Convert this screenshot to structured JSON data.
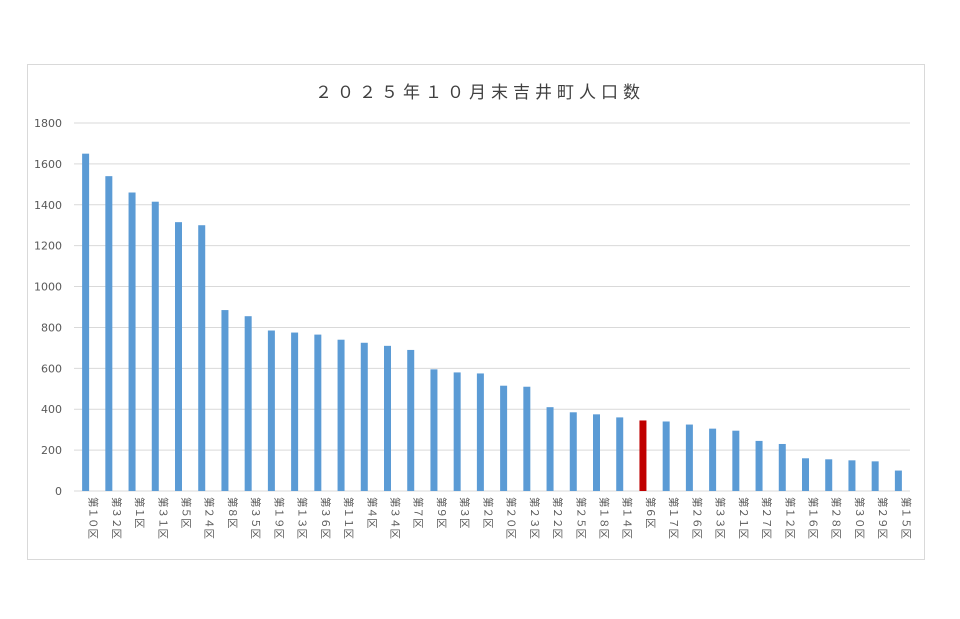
{
  "chart_data": {
    "type": "bar",
    "title": "２０２５年１０月末吉井町人口数",
    "xlabel": "",
    "ylabel": "",
    "ylim": [
      0,
      1800
    ],
    "yticks": [
      0,
      200,
      400,
      600,
      800,
      1000,
      1200,
      1400,
      1600,
      1800
    ],
    "grid": true,
    "legend": "none",
    "colors": {
      "bar": "#5b9bd5",
      "highlight": "#c00000",
      "grid": "#d9d9d9",
      "text": "#595959"
    },
    "highlight_category": "第６区",
    "categories": [
      "第１０区",
      "第３２区",
      "第１区",
      "第３１区",
      "第５区",
      "第２４区",
      "第８区",
      "第３５区",
      "第１９区",
      "第１３区",
      "第３６区",
      "第１１区",
      "第４区",
      "第３４区",
      "第７区",
      "第９区",
      "第３区",
      "第２区",
      "第２０区",
      "第２３区",
      "第２２区",
      "第２５区",
      "第１８区",
      "第１４区",
      "第６区",
      "第１７区",
      "第２６区",
      "第３３区",
      "第２１区",
      "第２７区",
      "第１２区",
      "第１６区",
      "第２８区",
      "第３０区",
      "第２９区",
      "第１５区"
    ],
    "values": [
      1650,
      1540,
      1460,
      1415,
      1315,
      1300,
      885,
      855,
      785,
      775,
      765,
      740,
      725,
      710,
      690,
      595,
      580,
      575,
      515,
      510,
      410,
      385,
      375,
      360,
      345,
      340,
      325,
      305,
      295,
      245,
      230,
      160,
      155,
      150,
      145,
      100
    ]
  }
}
